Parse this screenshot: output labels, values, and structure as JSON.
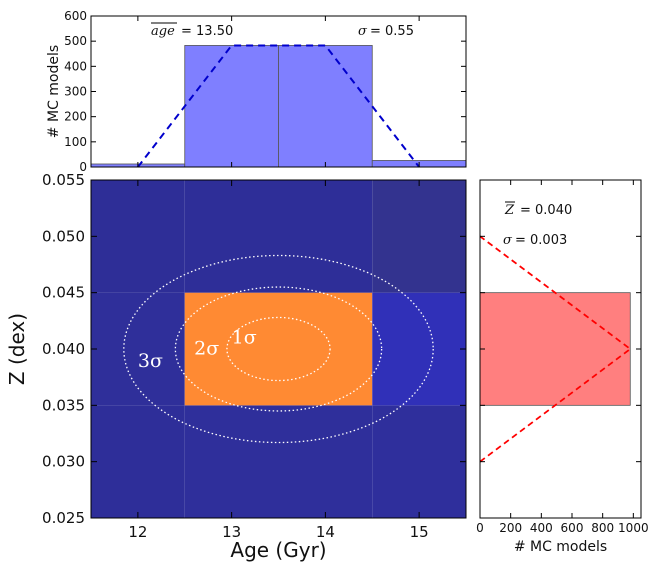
{
  "chart_data": [
    {
      "panel": "age-histogram",
      "type": "bar",
      "bins": [
        [
          11.5,
          12.5
        ],
        [
          12.5,
          13.5
        ],
        [
          13.5,
          14.5
        ],
        [
          14.5,
          15.5
        ]
      ],
      "values": [
        12,
        483,
        483,
        26
      ],
      "fit_curve": {
        "x": [
          12.0,
          13.0,
          14.0,
          15.0
        ],
        "y": [
          0,
          483,
          483,
          0
        ]
      },
      "xlim": [
        11.5,
        15.5
      ],
      "ylim": [
        0,
        600
      ],
      "yticks": [
        0,
        100,
        200,
        300,
        400,
        500,
        600
      ],
      "ylabel": "# MC models",
      "bar_color": "#7f7fff",
      "curve_color": "#0000cc",
      "mean_label": "age",
      "mean_value": "= 13.50",
      "sigma_label": "σ",
      "sigma_value": "=  0.55"
    },
    {
      "panel": "density-map",
      "type": "heatmap",
      "x_edges": [
        11.5,
        12.5,
        13.5,
        14.5,
        15.5
      ],
      "y_edges": [
        0.025,
        0.035,
        0.045,
        0.055
      ],
      "cells": [
        {
          "x": [
            11.5,
            12.5
          ],
          "y": [
            0.025,
            0.035
          ],
          "color": "#2e2e99"
        },
        {
          "x": [
            12.5,
            14.5
          ],
          "y": [
            0.025,
            0.035
          ],
          "color": "#2f2f9b"
        },
        {
          "x": [
            14.5,
            15.5
          ],
          "y": [
            0.025,
            0.035
          ],
          "color": "#2f2f9c"
        },
        {
          "x": [
            11.5,
            12.5
          ],
          "y": [
            0.035,
            0.045
          ],
          "color": "#2f2f9a"
        },
        {
          "x": [
            12.5,
            14.5
          ],
          "y": [
            0.035,
            0.045
          ],
          "color": "#ff8a33"
        },
        {
          "x": [
            14.5,
            15.5
          ],
          "y": [
            0.035,
            0.045
          ],
          "color": "#3030b8"
        },
        {
          "x": [
            11.5,
            12.5
          ],
          "y": [
            0.045,
            0.055
          ],
          "color": "#2e2e97"
        },
        {
          "x": [
            12.5,
            14.5
          ],
          "y": [
            0.045,
            0.055
          ],
          "color": "#2e2e98"
        },
        {
          "x": [
            14.5,
            15.5
          ],
          "y": [
            0.045,
            0.055
          ],
          "color": "#33338f"
        }
      ],
      "contours": [
        {
          "label": "1σ",
          "cx": 13.5,
          "cy": 0.04,
          "rx": 0.55,
          "ry": 0.0028
        },
        {
          "label": "2σ",
          "cx": 13.5,
          "cy": 0.04,
          "rx": 1.1,
          "ry": 0.0055
        },
        {
          "label": "3σ",
          "cx": 13.5,
          "cy": 0.04,
          "rx": 1.65,
          "ry": 0.0083
        }
      ],
      "sigma_labels": [
        {
          "text": "1σ",
          "x": 13.0,
          "y": 0.0405
        },
        {
          "text": "2σ",
          "x": 12.6,
          "y": 0.0395
        },
        {
          "text": "3σ",
          "x": 12.0,
          "y": 0.0384
        }
      ],
      "xlim": [
        11.5,
        15.5
      ],
      "ylim": [
        0.025,
        0.055
      ],
      "xticks": [
        12,
        13,
        14,
        15
      ],
      "xtick_labels": [
        "12",
        "13",
        "14",
        "15"
      ],
      "yticks": [
        0.025,
        0.03,
        0.035,
        0.04,
        0.045,
        0.05,
        0.055
      ],
      "ytick_labels": [
        "0.025",
        "0.030",
        "0.035",
        "0.040",
        "0.045",
        "0.050",
        "0.055"
      ],
      "xlabel": "Age (Gyr)",
      "ylabel": "Z (dex)"
    },
    {
      "panel": "metallicity-histogram",
      "type": "bar",
      "orientation": "horizontal",
      "bins": [
        [
          0.025,
          0.035
        ],
        [
          0.035,
          0.045
        ],
        [
          0.045,
          0.055
        ]
      ],
      "values": [
        0,
        980,
        0
      ],
      "fit_curve": {
        "x": [
          0,
          980,
          0
        ],
        "y": [
          0.03,
          0.04,
          0.05
        ]
      },
      "xlim": [
        0,
        1050
      ],
      "ylim": [
        0.025,
        0.055
      ],
      "xticks": [
        0,
        200,
        400,
        600,
        800,
        1000
      ],
      "xlabel": "# MC models",
      "bar_color": "#ff7f7f",
      "curve_color": "#ff0000",
      "mean_label": "Z",
      "mean_value": "= 0.040",
      "sigma_label": "σ",
      "sigma_value": "=  0.003"
    }
  ]
}
